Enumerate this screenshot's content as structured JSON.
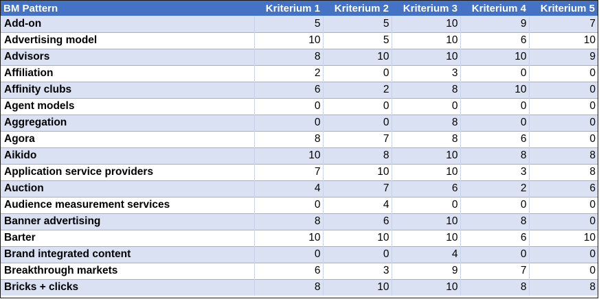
{
  "table": {
    "headers": [
      "BM Pattern",
      "Kriterium 1",
      "Kriterium 2",
      "Kriterium 3",
      "Kriterium 4",
      "Kriterium 5"
    ],
    "rows": [
      {
        "name": "Add-on",
        "values": [
          "5",
          "5",
          "10",
          "9",
          "7"
        ]
      },
      {
        "name": "Advertising model",
        "values": [
          "10",
          "5",
          "10",
          "6",
          "10"
        ]
      },
      {
        "name": "Advisors",
        "values": [
          "8",
          "10",
          "10",
          "10",
          "9"
        ]
      },
      {
        "name": "Affiliation",
        "values": [
          "2",
          "0",
          "3",
          "0",
          "0"
        ]
      },
      {
        "name": "Affinity clubs",
        "values": [
          "6",
          "2",
          "8",
          "10",
          "0"
        ]
      },
      {
        "name": "Agent models",
        "values": [
          "0",
          "0",
          "0",
          "0",
          "0"
        ]
      },
      {
        "name": "Aggregation",
        "values": [
          "0",
          "0",
          "8",
          "0",
          "0"
        ]
      },
      {
        "name": "Agora",
        "values": [
          "8",
          "7",
          "8",
          "6",
          "0"
        ]
      },
      {
        "name": "Aikido",
        "values": [
          "10",
          "8",
          "10",
          "8",
          "8"
        ]
      },
      {
        "name": "Application service providers",
        "values": [
          "7",
          "10",
          "10",
          "3",
          "8"
        ]
      },
      {
        "name": "Auction",
        "values": [
          "4",
          "7",
          "6",
          "2",
          "6"
        ]
      },
      {
        "name": "Audience measurement services",
        "values": [
          "0",
          "4",
          "0",
          "0",
          "0"
        ]
      },
      {
        "name": "Banner advertising",
        "values": [
          "8",
          "6",
          "10",
          "8",
          "0"
        ]
      },
      {
        "name": "Barter",
        "values": [
          "10",
          "10",
          "10",
          "6",
          "10"
        ]
      },
      {
        "name": "Brand integrated content",
        "values": [
          "0",
          "0",
          "4",
          "0",
          "0"
        ]
      },
      {
        "name": "Breakthrough markets",
        "values": [
          "6",
          "3",
          "9",
          "7",
          "0"
        ]
      },
      {
        "name": "Bricks + clicks",
        "values": [
          "8",
          "10",
          "10",
          "8",
          "8"
        ]
      }
    ]
  },
  "colors": {
    "header_bg": "#4472c4",
    "header_text": "#ffffff",
    "band_bg": "#d9e1f2",
    "row_bg": "#ffffff"
  }
}
